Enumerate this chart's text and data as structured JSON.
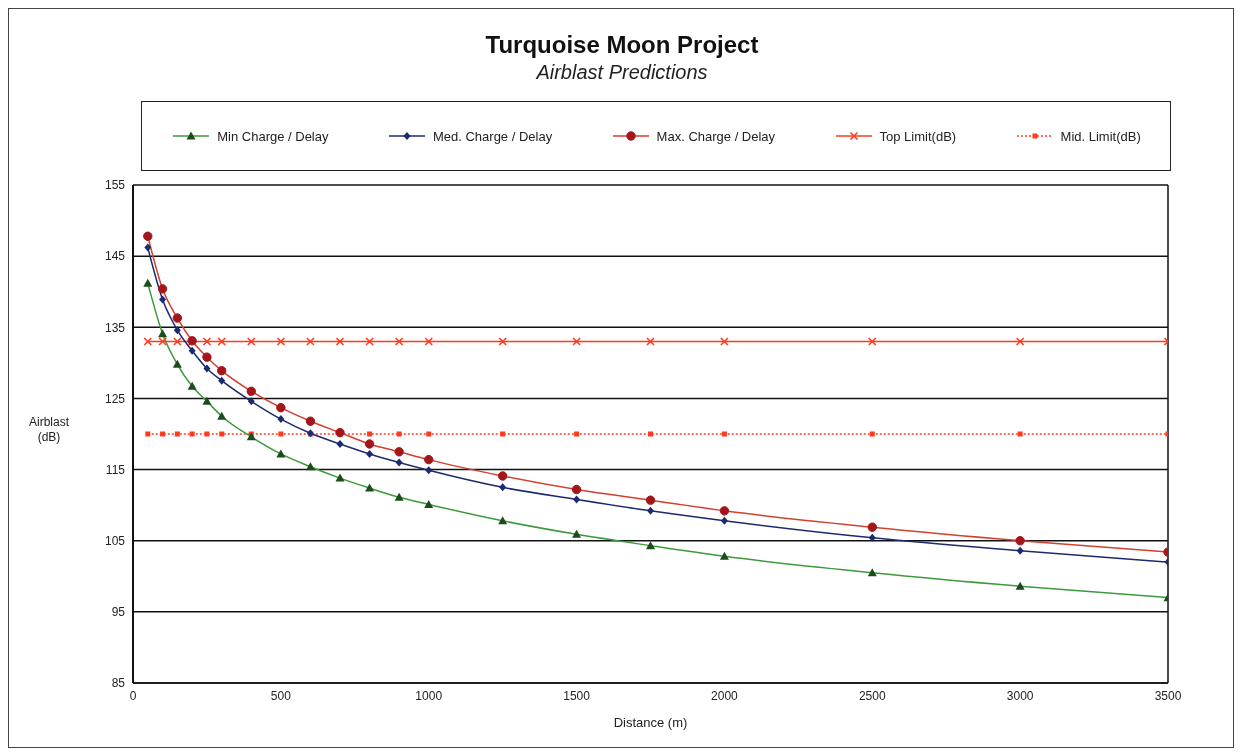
{
  "chart_data": {
    "type": "line",
    "title": "Turquoise Moon Project",
    "subtitle": "Airblast Predictions",
    "xlabel": "Distance (m)",
    "ylabel": "Airblast (dB)",
    "x": [
      50,
      100,
      150,
      200,
      250,
      300,
      400,
      500,
      600,
      700,
      800,
      900,
      1000,
      1250,
      1500,
      1750,
      2000,
      2500,
      3000,
      3500
    ],
    "series": [
      {
        "name": "Min Charge / Delay",
        "color": "#3c9a3c",
        "marker": "triangle",
        "line_style": "solid",
        "values": [
          141.2,
          134.1,
          129.8,
          126.7,
          124.6,
          122.5,
          119.6,
          117.2,
          115.4,
          113.8,
          112.4,
          111.1,
          110.1,
          107.8,
          105.9,
          104.3,
          102.8,
          100.5,
          98.6,
          97.0
        ]
      },
      {
        "name": "Med. Charge / Delay",
        "color": "#1c2a6e",
        "marker": "diamond",
        "line_style": "solid",
        "values": [
          146.2,
          138.9,
          134.6,
          131.7,
          129.2,
          127.5,
          124.6,
          122.1,
          120.1,
          118.6,
          117.2,
          116.0,
          114.9,
          112.5,
          110.8,
          109.2,
          107.8,
          105.4,
          103.6,
          102.0
        ]
      },
      {
        "name": "Max. Charge / Delay",
        "color": "#d2402e",
        "marker": "circle",
        "line_style": "solid",
        "values": [
          147.8,
          140.4,
          136.3,
          133.1,
          130.8,
          128.9,
          126.0,
          123.7,
          121.8,
          120.2,
          118.6,
          117.5,
          116.4,
          114.1,
          112.2,
          110.7,
          109.2,
          106.9,
          105.0,
          103.4
        ]
      },
      {
        "name": "Top  Limit(dB)",
        "color": "#ff3b1f",
        "marker": "cross",
        "line_style": "solid",
        "values": [
          133,
          133,
          133,
          133,
          133,
          133,
          133,
          133,
          133,
          133,
          133,
          133,
          133,
          133,
          133,
          133,
          133,
          133,
          133,
          133
        ]
      },
      {
        "name": "Mid. Limit(dB)",
        "color": "#ff3b1f",
        "marker": "square",
        "line_style": "dotted",
        "values": [
          120,
          120,
          120,
          120,
          120,
          120,
          120,
          120,
          120,
          120,
          120,
          120,
          120,
          120,
          120,
          120,
          120,
          120,
          120,
          120
        ]
      }
    ],
    "xlim": [
      0,
      3500
    ],
    "xticks": [
      0,
      500,
      1000,
      1500,
      2000,
      2500,
      3000,
      3500
    ],
    "ylim": [
      85,
      155
    ],
    "yticks": [
      85,
      95,
      105,
      115,
      125,
      135,
      145,
      155
    ],
    "grid": "y",
    "legend": "top"
  }
}
